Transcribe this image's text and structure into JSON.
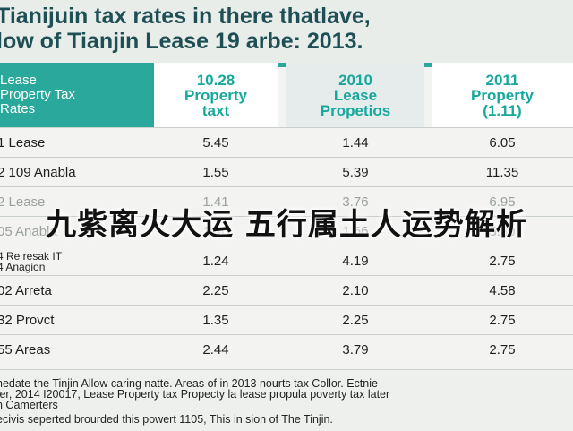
{
  "title": {
    "line1": "Tianijuin tax rates in there thatlave,",
    "line2": "low of Tianjin Lease 19 arbe: 2013."
  },
  "header": {
    "label_lines": [
      "Lease",
      "Property Tax",
      "Rates"
    ],
    "col1_lines": [
      "10.28",
      "Property",
      "taxt"
    ],
    "col2_lines": [
      "2010",
      "Lease",
      "Propetios"
    ],
    "col3_lines": [
      "2011",
      "Property",
      "(1.11)"
    ]
  },
  "rows": [
    {
      "label": "1 Lease",
      "c1": "5.45",
      "c2": "1.44",
      "c3": "6.05"
    },
    {
      "label": "2 109 Anabla",
      "c1": "1.55",
      "c2": "5.39",
      "c3": "11.35"
    },
    {
      "label": "2 Lease",
      "c1": "1.41",
      "c2": "3.76",
      "c3": "6.95"
    },
    {
      "label": "05 Anabla",
      "c1": "1.40",
      "c2": "1.66",
      "c3": "5.80"
    },
    {
      "label": "4 Re resak IT",
      "label2": "4 Anagion",
      "c1": "1.24",
      "c2": "4.19",
      "c3": "2.75"
    },
    {
      "label": "02 Arreta",
      "c1": "2.25",
      "c2": "2.10",
      "c3": "4.58"
    },
    {
      "label": "32 Provct",
      "c1": "1.35",
      "c2": "2.25",
      "c3": "2.75"
    },
    {
      "label": "55 Areas",
      "c1": "2.44",
      "c2": "3.79",
      "c3": "2.75"
    }
  ],
  "overlay_text": "九紫离火大运 五行属土人运势解析",
  "footer": {
    "line1": "nedate the Tinjin Allow caring natte. Areas of in 2013 nourts tax Collor. Ectnie",
    "line2": "ter, 2014 I20017, Lease Property tax Propecty la lease propula poverty tax later",
    "line3": "n Camerters",
    "line4": "ecivis seperted brourded this powert 1105, This in sion of The Tinjin."
  },
  "colors": {
    "accent": "#2aa89b",
    "title_text": "#1e4f55",
    "header_text": "#16a89c"
  }
}
